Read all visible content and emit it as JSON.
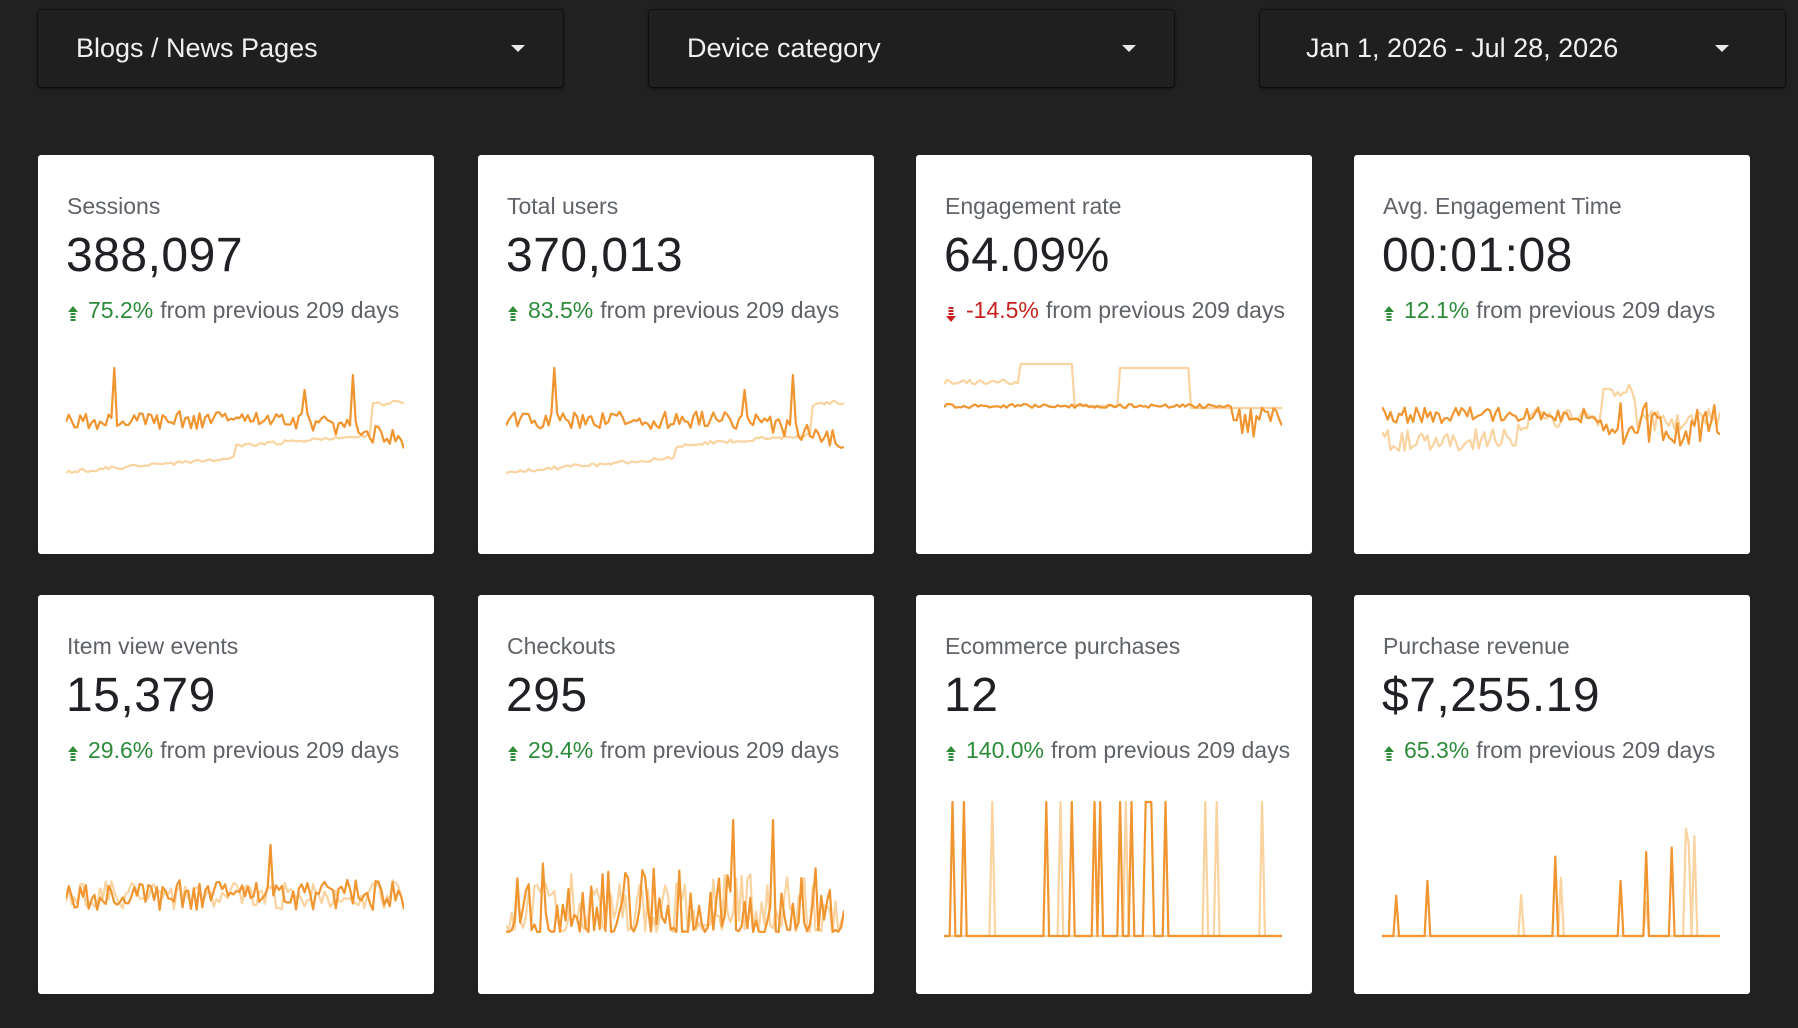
{
  "filters": [
    {
      "label": "Blogs / News Pages"
    },
    {
      "label": "Device category"
    },
    {
      "label": "Jan 1, 2026 - Jul 28, 2026"
    }
  ],
  "colors": {
    "background": "#212121",
    "current_series": "#f0952f",
    "previous_series": "#f9d3a0",
    "positive": "#2e8b3a",
    "negative": "#c5221f"
  },
  "scorecards": [
    {
      "title": "Sessions",
      "value": "388,097",
      "direction": "up",
      "delta_pct": "75.2%",
      "delta_text": "from previous 209 days",
      "spark": "sessions"
    },
    {
      "title": "Total users",
      "value": "370,013",
      "direction": "up",
      "delta_pct": "83.5%",
      "delta_text": "from previous 209 days",
      "spark": "users"
    },
    {
      "title": "Engagement rate",
      "value": "64.09%",
      "direction": "down",
      "delta_pct": "-14.5%",
      "delta_text": "from previous 209 days",
      "spark": "engagement"
    },
    {
      "title": "Avg. Engagement Time",
      "value": "00:01:08",
      "direction": "up",
      "delta_pct": "12.1%",
      "delta_text": "from previous 209 days",
      "spark": "avgtime"
    },
    {
      "title": "Item view events",
      "value": "15,379",
      "direction": "up",
      "delta_pct": "29.6%",
      "delta_text": "from previous 209 days",
      "spark": "itemview"
    },
    {
      "title": "Checkouts",
      "value": "295",
      "direction": "up",
      "delta_pct": "29.4%",
      "delta_text": "from previous 209 days",
      "spark": "checkouts"
    },
    {
      "title": "Ecommerce purchases",
      "value": "12",
      "direction": "up",
      "delta_pct": "140.0%",
      "delta_text": "from previous 209 days",
      "spark": "purchases"
    },
    {
      "title": "Purchase revenue",
      "value": "$7,255.19",
      "direction": "up",
      "delta_pct": "65.3%",
      "delta_text": "from previous 209 days",
      "spark": "revenue"
    }
  ]
}
